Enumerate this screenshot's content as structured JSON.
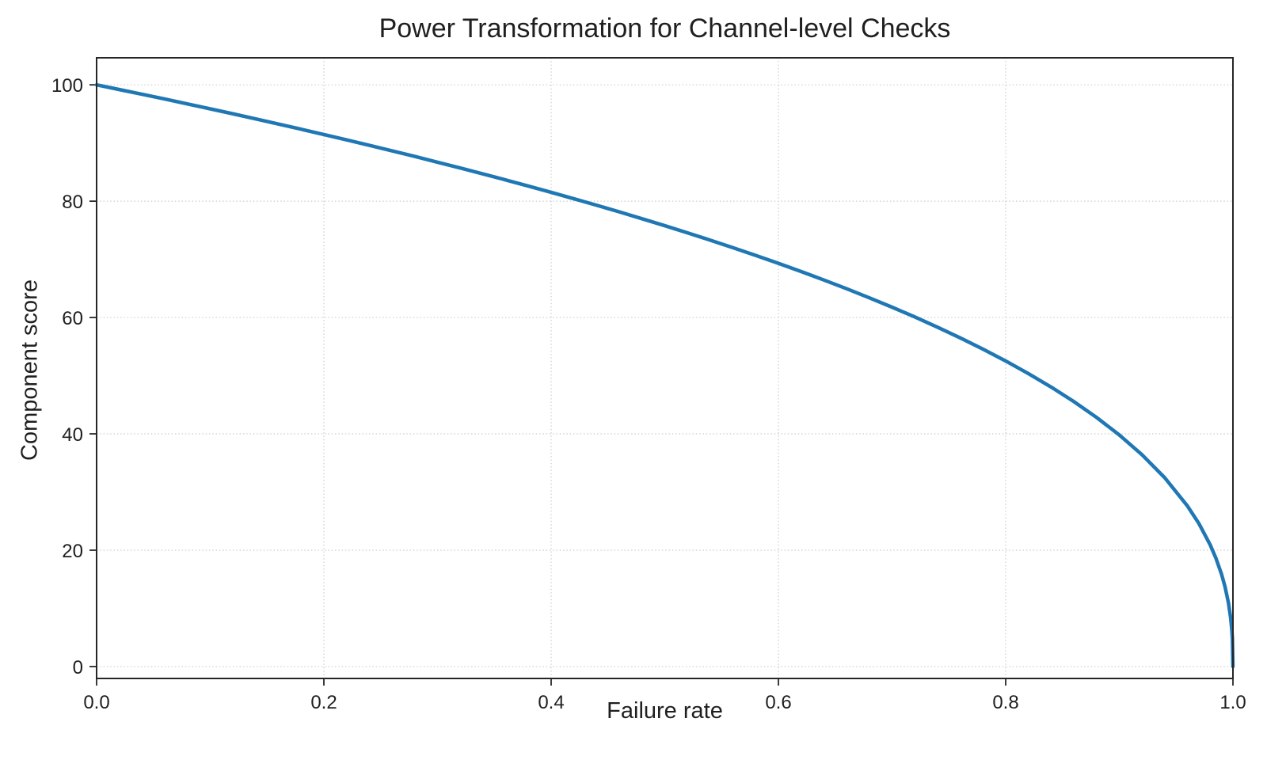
{
  "title": "Power Transformation for Channel-level Checks",
  "colors": {
    "line": "#1f77b4",
    "grid": "#cccccc",
    "spine": "#262626",
    "text": "#1f1f1f",
    "background": "#ffffff"
  },
  "chart_data": {
    "type": "line",
    "title": "Power Transformation for Channel-level Checks",
    "xlabel": "Failure rate",
    "ylabel": "Component score",
    "xlim": [
      0.0,
      1.0
    ],
    "ylim": [
      0,
      100
    ],
    "grid": "dotted",
    "legend": "none",
    "formula": "y = 100 * (1 - x)^0.4",
    "x_ticks": [
      {
        "value": 0.0,
        "label": "0.0"
      },
      {
        "value": 0.2,
        "label": "0.2"
      },
      {
        "value": 0.4,
        "label": "0.4"
      },
      {
        "value": 0.6,
        "label": "0.6"
      },
      {
        "value": 0.8,
        "label": "0.8"
      },
      {
        "value": 1.0,
        "label": "1.0"
      }
    ],
    "y_ticks": [
      {
        "value": 0,
        "label": "0"
      },
      {
        "value": 20,
        "label": "20"
      },
      {
        "value": 40,
        "label": "40"
      },
      {
        "value": 60,
        "label": "60"
      },
      {
        "value": 80,
        "label": "80"
      },
      {
        "value": 100,
        "label": "100"
      }
    ],
    "series": [
      {
        "name": "component-score-curve",
        "color": "#1f77b4",
        "line_width": 4.5,
        "x": [
          0.0,
          0.02,
          0.04,
          0.06,
          0.08,
          0.1,
          0.12,
          0.14,
          0.16,
          0.18,
          0.2,
          0.22,
          0.24,
          0.26,
          0.28,
          0.3,
          0.32,
          0.34,
          0.36,
          0.38,
          0.4,
          0.42,
          0.44,
          0.46,
          0.48,
          0.5,
          0.52,
          0.54,
          0.56,
          0.58,
          0.6,
          0.62,
          0.64,
          0.66,
          0.68,
          0.7,
          0.72,
          0.74,
          0.76,
          0.78,
          0.8,
          0.82,
          0.84,
          0.86,
          0.88,
          0.9,
          0.92,
          0.94,
          0.96,
          0.97,
          0.98,
          0.985,
          0.99,
          0.993,
          0.996,
          0.998,
          0.999,
          0.9995,
          1.0
        ],
        "y": [
          100.0,
          99.19,
          98.38,
          97.56,
          96.72,
          95.87,
          95.02,
          94.15,
          93.26,
          92.37,
          91.46,
          90.54,
          89.6,
          88.65,
          87.69,
          86.7,
          85.7,
          84.69,
          83.65,
          82.6,
          81.52,
          80.42,
          79.3,
          78.16,
          76.98,
          75.79,
          74.56,
          73.3,
          72.01,
          70.68,
          69.31,
          67.91,
          66.45,
          64.95,
          63.39,
          61.78,
          60.1,
          58.34,
          56.5,
          54.57,
          52.53,
          50.36,
          48.05,
          45.55,
          42.82,
          39.81,
          36.41,
          32.45,
          27.59,
          24.6,
          20.91,
          18.64,
          15.85,
          13.74,
          10.99,
          8.33,
          6.31,
          4.78,
          0.0
        ]
      }
    ]
  }
}
